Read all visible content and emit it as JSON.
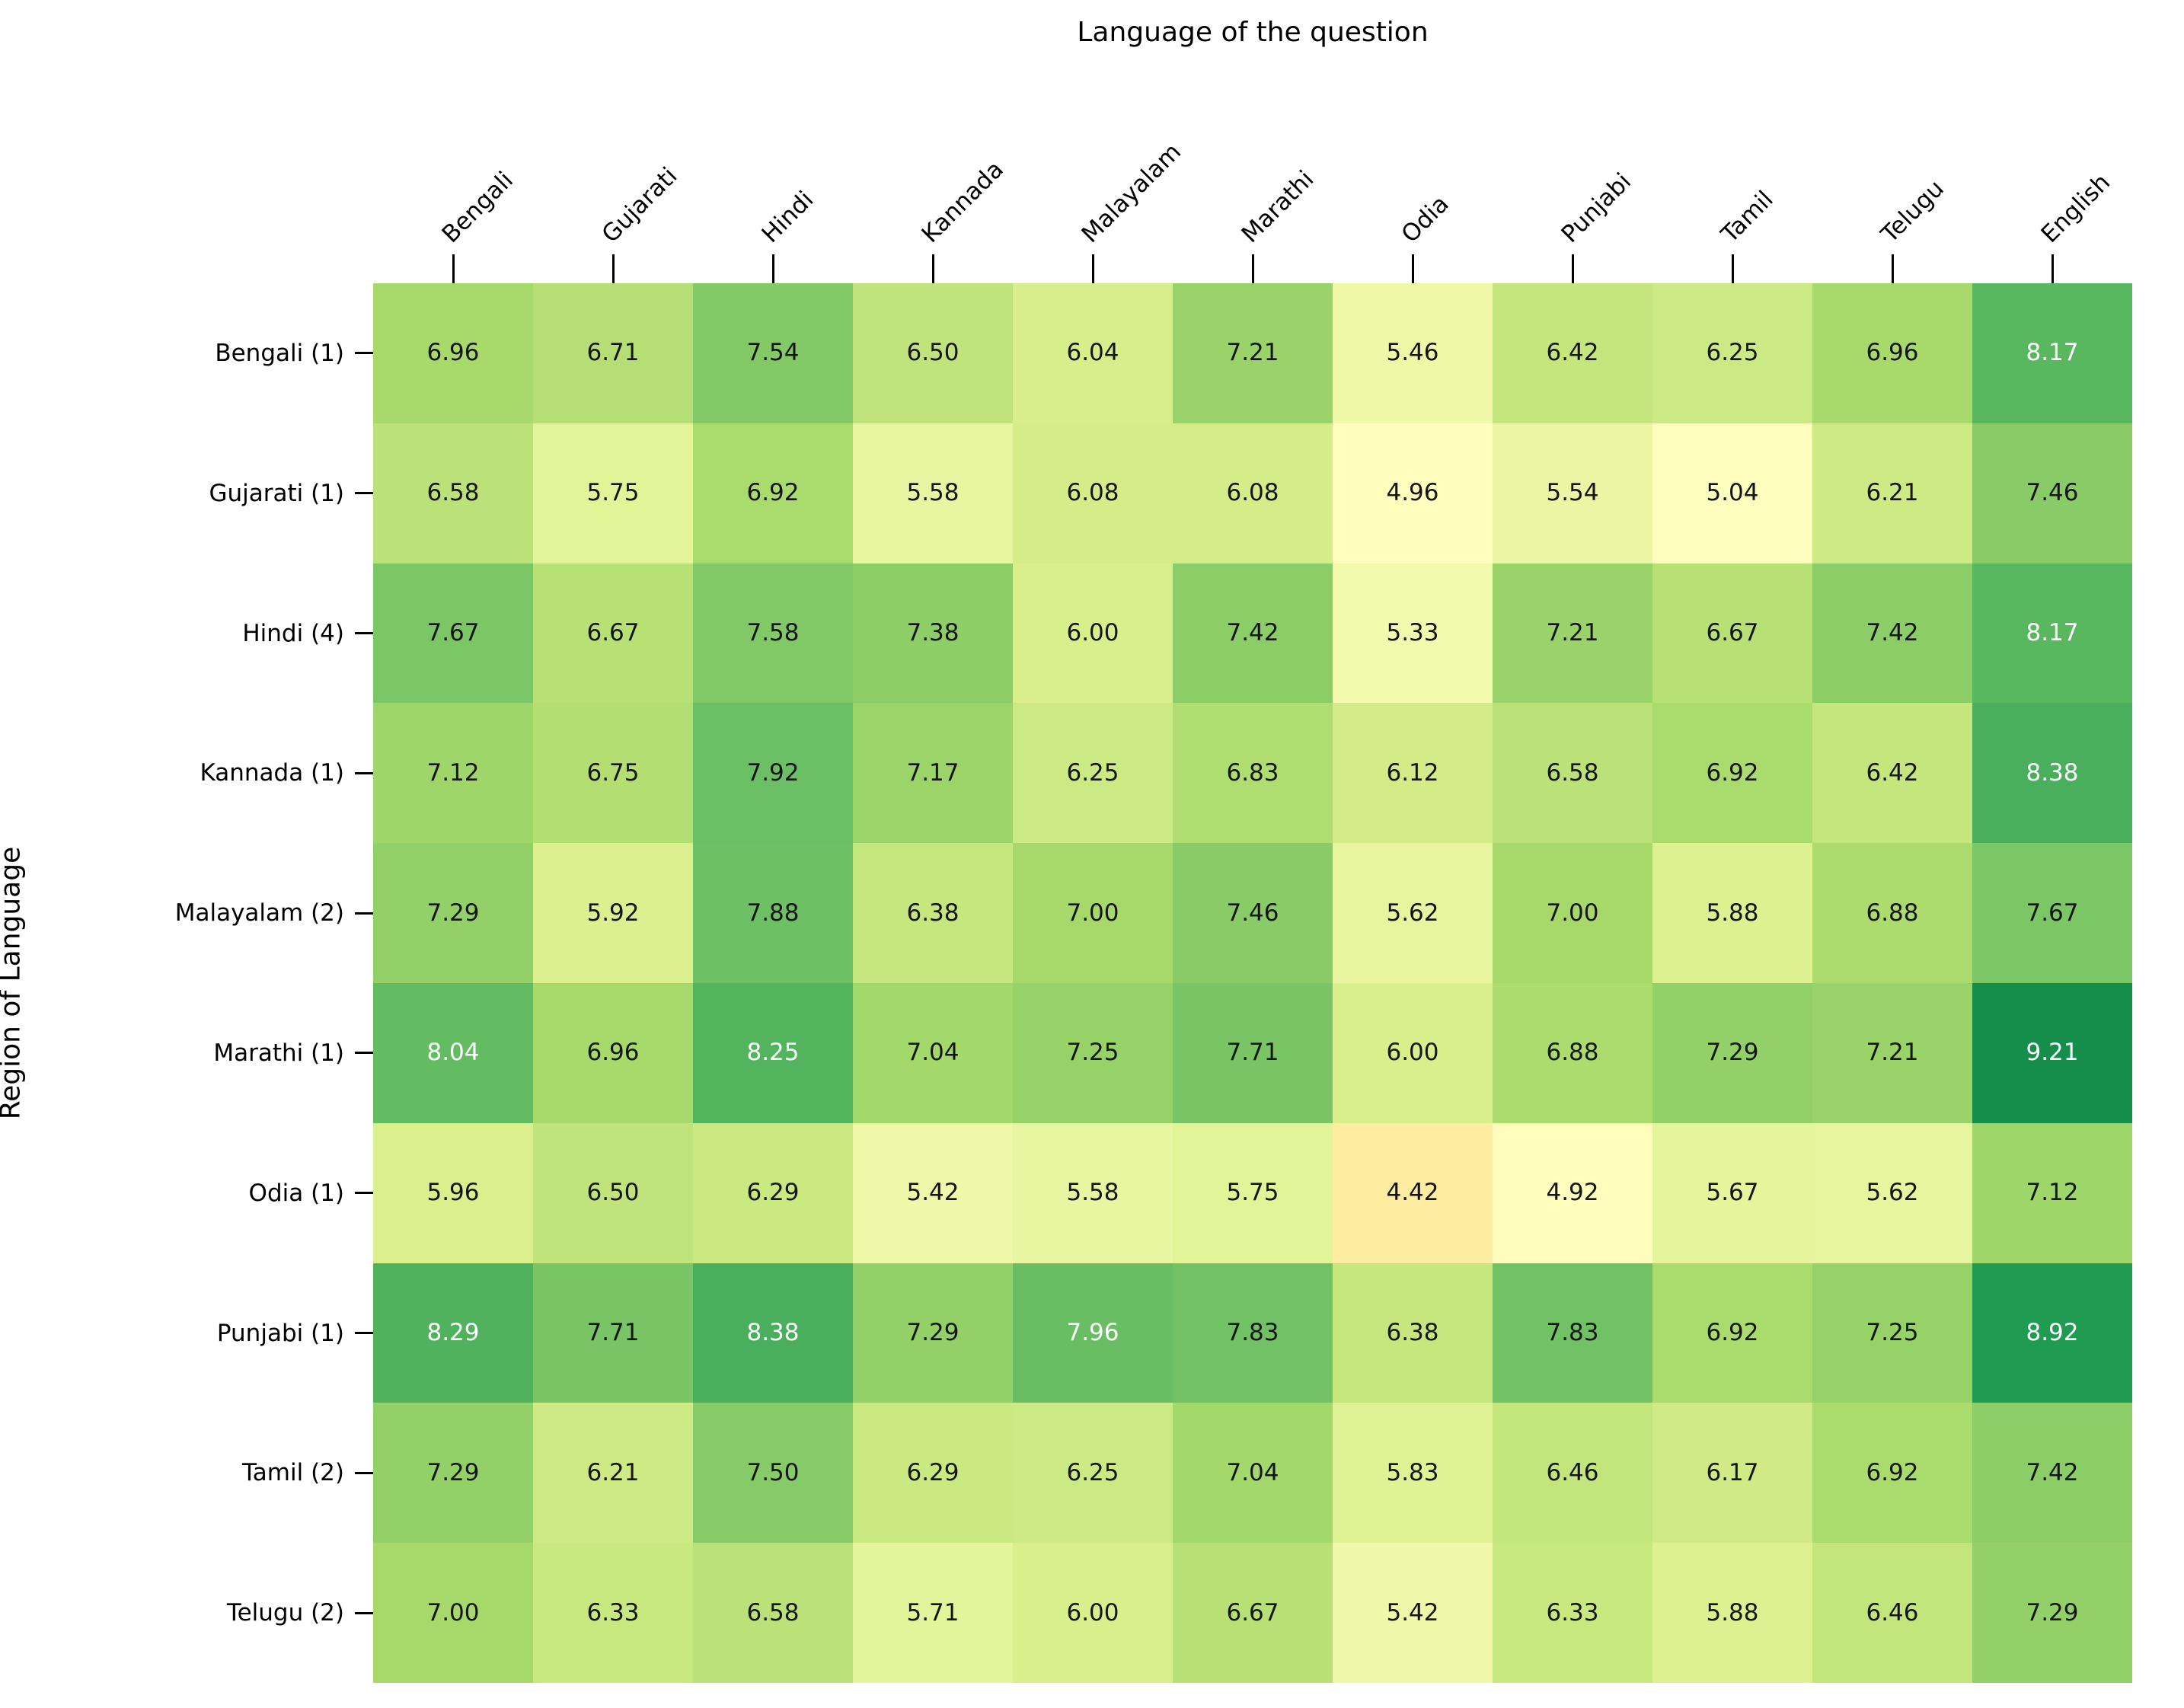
{
  "chart_data": {
    "type": "heatmap",
    "xlabel": "Language of the question",
    "ylabel": "Region of Language",
    "columns": [
      "Bengali",
      "Gujarati",
      "Hindi",
      "Kannada",
      "Malayalam",
      "Marathi",
      "Odia",
      "Punjabi",
      "Tamil",
      "Telugu",
      "English"
    ],
    "rows": [
      "Bengali (1)",
      "Gujarati (1)",
      "Hindi (4)",
      "Kannada (1)",
      "Malayalam (2)",
      "Marathi (1)",
      "Odia (1)",
      "Punjabi (1)",
      "Tamil (2)",
      "Telugu (2)"
    ],
    "values": [
      [
        6.96,
        6.71,
        7.54,
        6.5,
        6.04,
        7.21,
        5.46,
        6.42,
        6.25,
        6.96,
        8.17
      ],
      [
        6.58,
        5.75,
        6.92,
        5.58,
        6.08,
        6.08,
        4.96,
        5.54,
        5.04,
        6.21,
        7.46
      ],
      [
        7.67,
        6.67,
        7.58,
        7.38,
        6.0,
        7.42,
        5.33,
        7.21,
        6.67,
        7.42,
        8.17
      ],
      [
        7.12,
        6.75,
        7.92,
        7.17,
        6.25,
        6.83,
        6.12,
        6.58,
        6.92,
        6.42,
        8.38
      ],
      [
        7.29,
        5.92,
        7.88,
        6.38,
        7.0,
        7.46,
        5.62,
        7.0,
        5.88,
        6.88,
        7.67
      ],
      [
        8.04,
        6.96,
        8.25,
        7.04,
        7.25,
        7.71,
        6.0,
        6.88,
        7.29,
        7.21,
        9.21
      ],
      [
        5.96,
        6.5,
        6.29,
        5.42,
        5.58,
        5.75,
        4.42,
        4.92,
        5.67,
        5.62,
        7.12
      ],
      [
        8.29,
        7.71,
        8.38,
        7.29,
        7.96,
        7.83,
        6.38,
        7.83,
        6.92,
        7.25,
        8.92
      ],
      [
        7.29,
        6.21,
        7.5,
        6.29,
        6.25,
        7.04,
        5.83,
        6.46,
        6.17,
        6.92,
        7.42
      ],
      [
        7.0,
        6.33,
        6.58,
        5.71,
        6.0,
        6.67,
        5.42,
        6.33,
        5.88,
        6.46,
        7.29
      ]
    ],
    "value_decimals": 2,
    "grid": false,
    "colormap": {
      "name": "RdYlGn",
      "vmin": 0,
      "vmax": 10,
      "anchors": [
        "#a50026",
        "#d73027",
        "#f46d43",
        "#fdae61",
        "#fee08b",
        "#ffffbf",
        "#d9ef8b",
        "#a6d96a",
        "#66bd63",
        "#1a9850",
        "#006837"
      ]
    },
    "annotation_text": {
      "dark_color": "#151515",
      "light_color": "#ffffff",
      "light_text_min_value": 7.94
    },
    "tick_color": "#000000"
  }
}
